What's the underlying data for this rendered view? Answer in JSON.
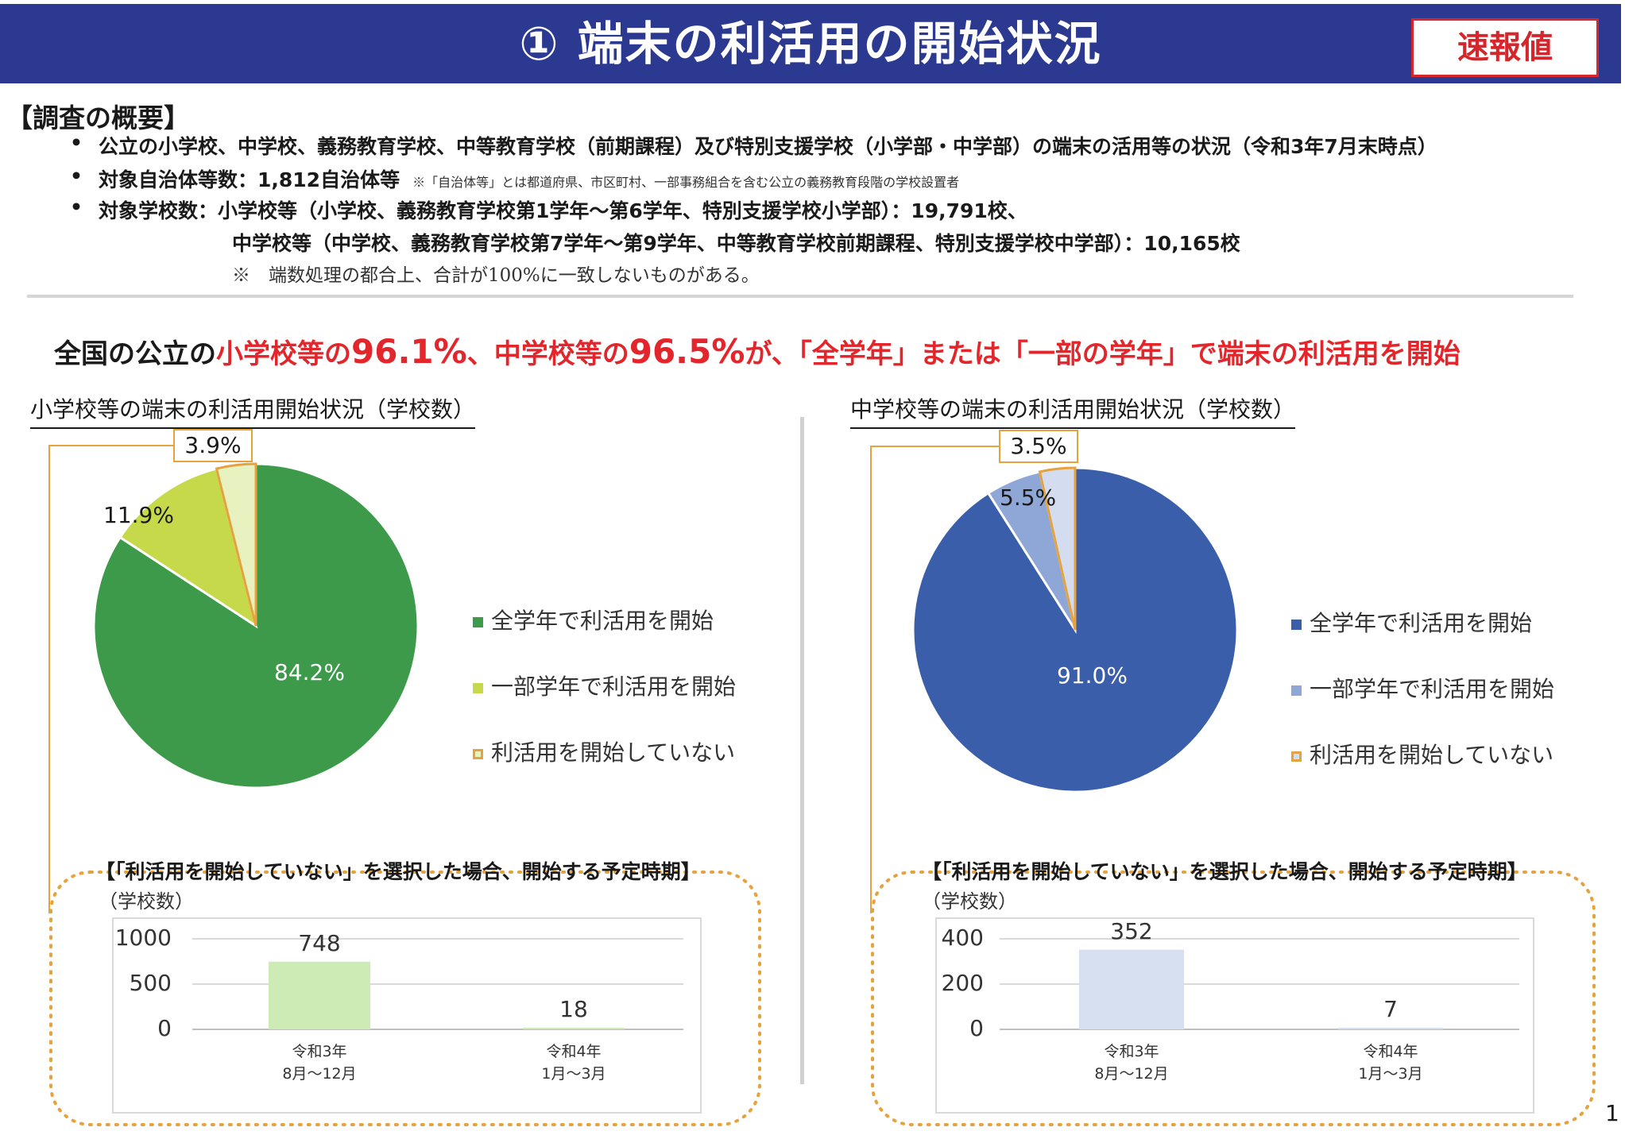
{
  "header": {
    "title": "① 端末の利活用の開始状況",
    "badge": "速報値"
  },
  "survey": {
    "heading": "【調査の概要】",
    "bullet_mark": "•",
    "line1": "公立の小学校、中学校、義務教育学校、中等教育学校（前期課程）及び特別支援学校（小学部・中学部）の端末の活用等の状況（令和3年7月末時点）",
    "line2": "対象自治体等数：1,812自治体等",
    "line2_note": "※「自治体等」とは都道府県、市区町村、一部事務組合を含む公立の義務教育段階の学校設置者",
    "line3": "対象学校数：小学校等（小学校、義務教育学校第1学年～第6学年、特別支援学校小学部）：19,791校、",
    "line4": "中学校等（中学校、義務教育学校第7学年～第9学年、中等教育学校前期課程、特別支援学校中学部）：10,165校",
    "line5": "※　端数処理の都合上、合計が100%に一致しないものがある。"
  },
  "headline": {
    "p1": "全国の公立の",
    "p2": "小学校等の",
    "p3": "96.1%",
    "p4": "、中学校等の",
    "p5": "96.5%",
    "p6": "が、「全学年」または「一部の学年」で端末の利活用を開始"
  },
  "legend": [
    "全学年で利活用を開始",
    "一部学年で利活用を開始",
    "利活用を開始していない"
  ],
  "colors": {
    "header_bg": "#2b3990",
    "accent_red": "#e3262b",
    "elem": [
      "#3d9a4a",
      "#c6d94a",
      "#e8f2c1"
    ],
    "mid": [
      "#3a5eaa",
      "#8ea7d6",
      "#d4dcef"
    ],
    "callout_border": "#e6a23c",
    "elem_bar": "#cdebb5",
    "mid_bar": "#d6e0f1"
  },
  "chart_data": [
    {
      "type": "pie",
      "title": "小学校等の端末の利活用開始状況（学校数）",
      "categories": [
        "全学年で利活用を開始",
        "一部学年で利活用を開始",
        "利活用を開始していない"
      ],
      "values": [
        84.2,
        11.9,
        3.9
      ],
      "labels": [
        "84.2%",
        "11.9%",
        "3.9%"
      ]
    },
    {
      "type": "pie",
      "title": "中学校等の端末の利活用開始状況（学校数）",
      "categories": [
        "全学年で利活用を開始",
        "一部学年で利活用を開始",
        "利活用を開始していない"
      ],
      "values": [
        91.0,
        5.5,
        3.5
      ],
      "labels": [
        "91.0%",
        "5.5%",
        "3.5%"
      ]
    },
    {
      "type": "bar",
      "title": "【「利活用を開始していない」を選択した場合、開始する予定時期】",
      "ylabel": "（学校数）",
      "categories": [
        [
          "令和3年",
          "8月～12月"
        ],
        [
          "令和4年",
          "1月～3月"
        ]
      ],
      "values": [
        748,
        18
      ],
      "yticks": [
        "1000",
        "500",
        "0"
      ],
      "ylim": [
        0,
        1000
      ]
    },
    {
      "type": "bar",
      "title": "【「利活用を開始していない」を選択した場合、開始する予定時期】",
      "ylabel": "（学校数）",
      "categories": [
        [
          "令和3年",
          "8月～12月"
        ],
        [
          "令和4年",
          "1月～3月"
        ]
      ],
      "values": [
        352,
        7
      ],
      "yticks": [
        "400",
        "200",
        "0"
      ],
      "ylim": [
        0,
        400
      ]
    }
  ],
  "page_number": "1"
}
